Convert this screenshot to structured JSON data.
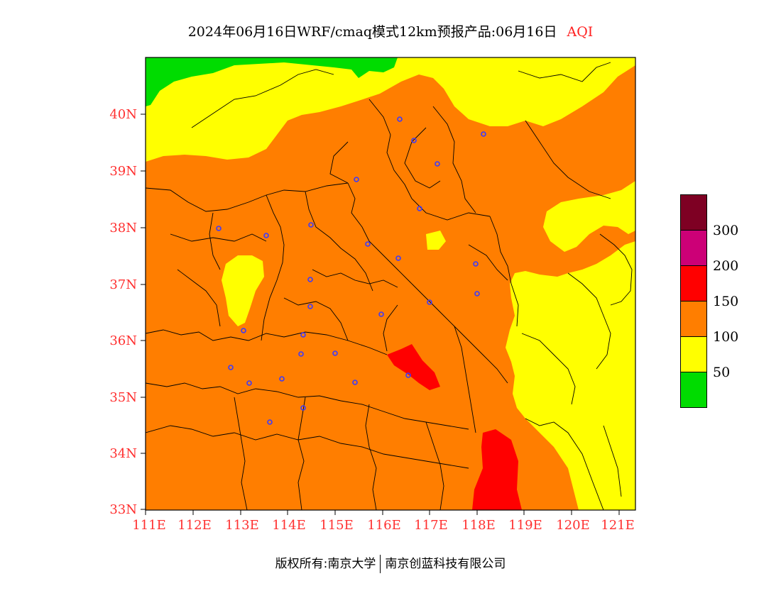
{
  "title": {
    "main": "2024年06月16日WRF/cmaq模式12km预报产品:06月16日",
    "variable": "AQI"
  },
  "axes": {
    "lat_labels": [
      "40N",
      "39N",
      "38N",
      "37N",
      "36N",
      "35N",
      "34N",
      "33N"
    ],
    "lon_labels": [
      "111E",
      "112E",
      "113E",
      "114E",
      "115E",
      "116E",
      "117E",
      "118E",
      "119E",
      "120E",
      "121E"
    ]
  },
  "legend": {
    "labels": [
      "300",
      "200",
      "150",
      "100",
      "50"
    ],
    "colors": {
      "0-50": "#00dc00",
      "50-100": "#ffff00",
      "100-150": "#ff7e00",
      "150-200": "#ff0000",
      "200-300": "#cc0077",
      "300+": "#7e0023"
    }
  },
  "footer": {
    "left": "版权所有:南京大学",
    "right": "南京创蓝科技有限公司"
  }
}
